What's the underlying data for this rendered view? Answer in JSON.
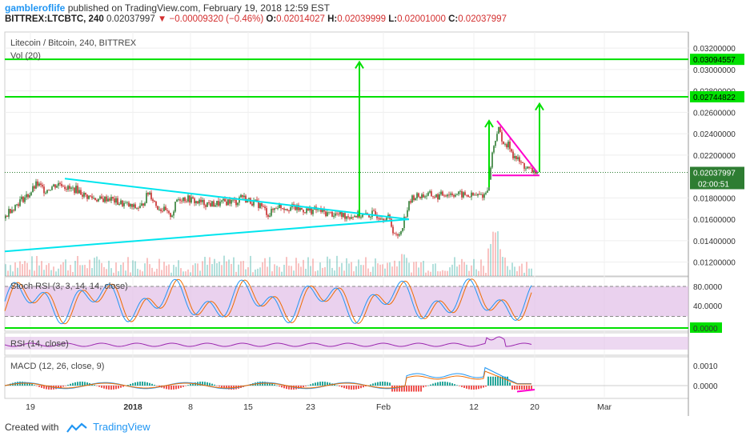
{
  "header": {
    "username": "gambleroflife",
    "published_text": " published on TradingView.com, February 19, 2018 12:59 EST",
    "symbol": "BITTREX:LTCBTC, 240",
    "last": "0.02037997",
    "change": "−0.00009320 (−0.46%)",
    "o_label": "O:",
    "o_value": "0.02014027",
    "h_label": "H:",
    "h_value": "0.02039999",
    "l_label": "L:",
    "l_value": "0.02001000",
    "c_label": "C:",
    "c_value": "0.02037997"
  },
  "panels": {
    "main_label": "Litecoin / Bitcoin, 240, BITTREX",
    "vol_label": "Vol (20)",
    "stoch_label": "Stoch RSI (3, 3, 14, 14, close)",
    "rsi_label": "RSI (14, close)",
    "macd_label": "MACD (12, 26, close, 9)"
  },
  "footer": {
    "created_with": "Created with",
    "brand": "TradingView"
  },
  "colors": {
    "up": "#26a69a",
    "down": "#ef5350",
    "candle_green": "#2e7d32",
    "candle_red": "#c62828",
    "trendline": "#00e5ee",
    "target": "#00e000",
    "wedge": "#ff00cc",
    "stoch_k": "#2196f3",
    "stoch_d": "#ef6c00",
    "band": "#e1bee7",
    "rsi": "#9c27b0",
    "macd_line": "#2196f3",
    "signal_line": "#ef6c00"
  },
  "chart_data": {
    "type": "line",
    "title": "Litecoin / Bitcoin, 240, BITTREX",
    "y_ticks": [
      "0.03200000",
      "0.03000000",
      "0.02800000",
      "0.02600000",
      "0.02400000",
      "0.02200000",
      "0.01800000",
      "0.01600000",
      "0.01400000",
      "0.01200000"
    ],
    "y_tick_values": [
      0.032,
      0.03,
      0.028,
      0.026,
      0.024,
      0.022,
      0.018,
      0.016,
      0.014,
      0.012
    ],
    "ylim": [
      0.0107,
      0.0335
    ],
    "x_ticks": [
      "19",
      "2018",
      "8",
      "15",
      "23",
      "Feb",
      "12",
      "20",
      "Mar"
    ],
    "price_path": [
      [
        0,
        0.0161
      ],
      [
        5,
        0.0168
      ],
      [
        12,
        0.0172
      ],
      [
        20,
        0.0178
      ],
      [
        30,
        0.0183
      ],
      [
        40,
        0.0193
      ],
      [
        50,
        0.0187
      ],
      [
        60,
        0.0191
      ],
      [
        70,
        0.0194
      ],
      [
        80,
        0.0188
      ],
      [
        90,
        0.0188
      ],
      [
        100,
        0.0182
      ],
      [
        110,
        0.018
      ],
      [
        120,
        0.0178
      ],
      [
        130,
        0.018
      ],
      [
        140,
        0.0176
      ],
      [
        150,
        0.0174
      ],
      [
        160,
        0.0171
      ],
      [
        170,
        0.0171
      ],
      [
        180,
        0.0186
      ],
      [
        190,
        0.0172
      ],
      [
        200,
        0.0168
      ],
      [
        205,
        0.0163
      ],
      [
        210,
        0.0166
      ],
      [
        215,
        0.0178
      ],
      [
        220,
        0.018
      ],
      [
        230,
        0.0179
      ],
      [
        240,
        0.0176
      ],
      [
        250,
        0.0175
      ],
      [
        260,
        0.0174
      ],
      [
        270,
        0.0175
      ],
      [
        280,
        0.0177
      ],
      [
        290,
        0.0176
      ],
      [
        295,
        0.0183
      ],
      [
        300,
        0.0179
      ],
      [
        310,
        0.0176
      ],
      [
        320,
        0.0173
      ],
      [
        330,
        0.0164
      ],
      [
        340,
        0.0173
      ],
      [
        350,
        0.0171
      ],
      [
        360,
        0.0171
      ],
      [
        370,
        0.0169
      ],
      [
        380,
        0.0168
      ],
      [
        390,
        0.0169
      ],
      [
        400,
        0.0166
      ],
      [
        410,
        0.0165
      ],
      [
        420,
        0.0164
      ],
      [
        430,
        0.0163
      ],
      [
        440,
        0.0164
      ],
      [
        450,
        0.0163
      ],
      [
        460,
        0.0165
      ],
      [
        470,
        0.0163
      ],
      [
        480,
        0.0161
      ],
      [
        485,
        0.015
      ],
      [
        490,
        0.0142
      ],
      [
        495,
        0.015
      ],
      [
        500,
        0.0163
      ],
      [
        505,
        0.0174
      ],
      [
        510,
        0.0181
      ],
      [
        520,
        0.0182
      ],
      [
        530,
        0.0183
      ],
      [
        540,
        0.0181
      ],
      [
        550,
        0.0184
      ],
      [
        560,
        0.0184
      ],
      [
        570,
        0.0183
      ],
      [
        580,
        0.0182
      ],
      [
        590,
        0.0182
      ],
      [
        600,
        0.0183
      ],
      [
        605,
        0.0195
      ],
      [
        608,
        0.0218
      ],
      [
        612,
        0.0232
      ],
      [
        616,
        0.0245
      ],
      [
        620,
        0.0238
      ],
      [
        625,
        0.0227
      ],
      [
        630,
        0.023
      ],
      [
        635,
        0.022
      ],
      [
        640,
        0.0216
      ],
      [
        645,
        0.0212
      ],
      [
        650,
        0.0209
      ],
      [
        655,
        0.0206
      ],
      [
        660,
        0.0205
      ],
      [
        665,
        0.0204
      ]
    ],
    "last_price": "0.02037997",
    "countdown": "02:00:51",
    "targets": [
      {
        "label": "0.03094557",
        "value": 0.03094557
      },
      {
        "label": "0.02744822",
        "value": 0.02744822
      }
    ],
    "trendlines": [
      {
        "from": [
          75,
          0.0198
        ],
        "to": [
          505,
          0.016
        ]
      },
      {
        "from": [
          0,
          0.013
        ],
        "to": [
          505,
          0.016
        ]
      }
    ],
    "target_arrows": [
      {
        "x": 443,
        "from": 0.0163,
        "to": 0.0307
      },
      {
        "x": 605,
        "from": 0.019,
        "to": 0.0252
      },
      {
        "x": 668,
        "from": 0.0204,
        "to": 0.0268
      }
    ],
    "wedge": {
      "top": [
        [
          615,
          0.0252
        ],
        [
          665,
          0.0204
        ]
      ],
      "bottom": [
        [
          609,
          0.0201
        ],
        [
          668,
          0.0201
        ]
      ]
    },
    "stoch_rsi": {
      "levels": [
        "80.0000",
        "40.0000",
        "0.0000"
      ],
      "level_values": [
        80,
        40,
        0
      ]
    },
    "rsi": {
      "label": "RSI (14, close)"
    },
    "macd": {
      "levels": [
        "0.0010",
        "0.0000"
      ],
      "level_values": [
        0.001,
        0.0
      ]
    }
  }
}
